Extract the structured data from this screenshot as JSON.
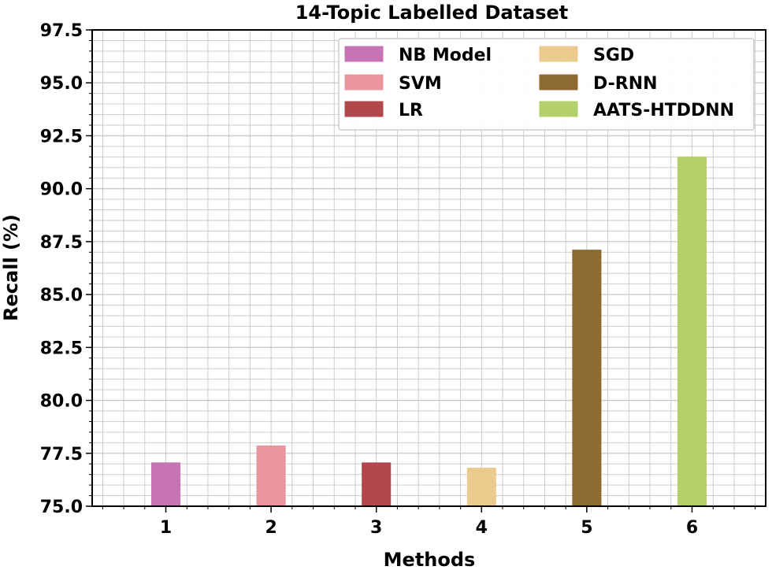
{
  "chart_data": {
    "type": "bar",
    "title": "14-Topic Labelled Dataset",
    "xlabel": "Methods",
    "ylabel": "Recall (%)",
    "ylim": [
      75.0,
      97.5
    ],
    "grid": true,
    "legend_position": "top-right",
    "categories": [
      "1",
      "2",
      "3",
      "4",
      "5",
      "6"
    ],
    "y_ticks": [
      "75.0",
      "77.5",
      "80.0",
      "82.5",
      "85.0",
      "87.5",
      "90.0",
      "92.5",
      "95.0",
      "97.5"
    ],
    "series": [
      {
        "name": "NB Model",
        "category": "1",
        "value": 77.05,
        "color": "#c774b4"
      },
      {
        "name": "SVM",
        "category": "2",
        "value": 77.85,
        "color": "#e8959b"
      },
      {
        "name": "LR",
        "category": "3",
        "value": 77.05,
        "color": "#b2474c"
      },
      {
        "name": "SGD",
        "category": "4",
        "value": 76.8,
        "color": "#ebca8e"
      },
      {
        "name": "D-RNN",
        "category": "5",
        "value": 87.1,
        "color": "#8c6a30"
      },
      {
        "name": "AATS-HTDDNN",
        "category": "6",
        "value": 91.5,
        "color": "#b3d06a"
      }
    ]
  }
}
